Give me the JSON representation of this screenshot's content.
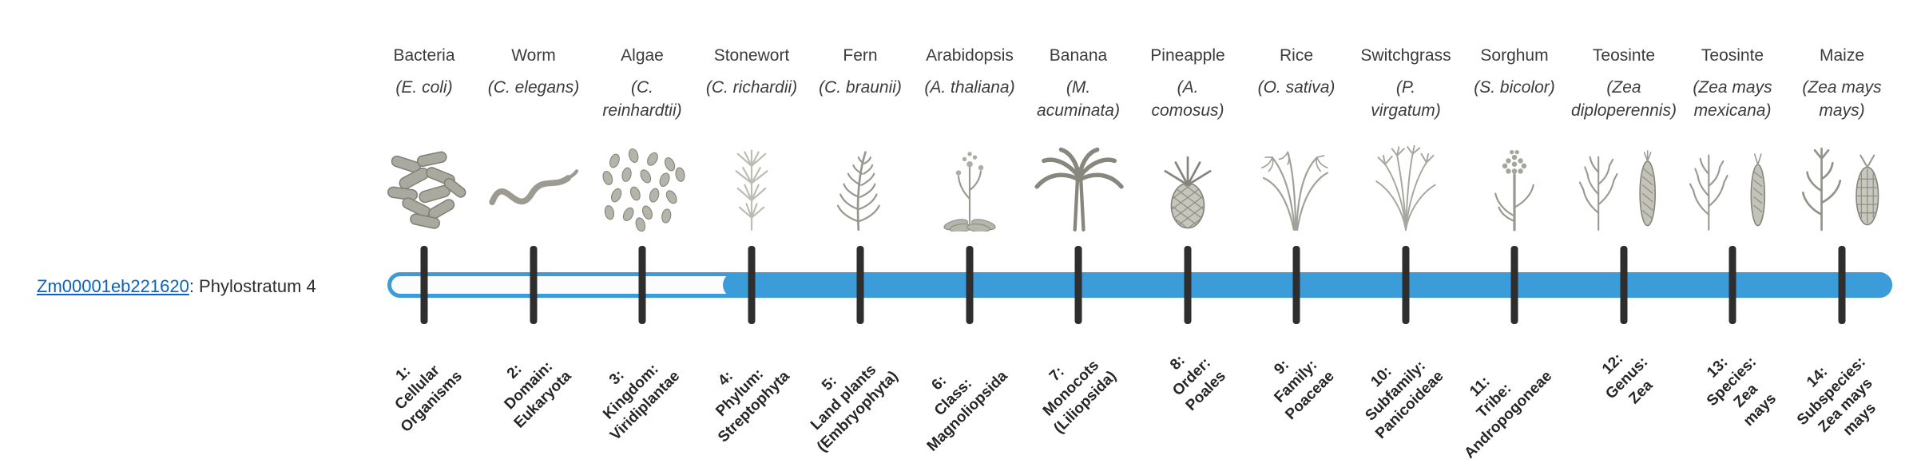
{
  "gene": {
    "id": "Zm00001eb221620",
    "suffix": ": Phylostratum 4"
  },
  "colors": {
    "bar_blue": "#3B9CD9",
    "tick": "#2E2E2E",
    "link": "#0A62C3",
    "text": "#3A3A3A"
  },
  "bar": {
    "filled_from_stratum": 4,
    "total_strata": 14
  },
  "columns": [
    {
      "common": "Bacteria",
      "scientific": "(E. coli)",
      "icon": "bacteria-icon",
      "stratum_label": "1:\nCellular\nOrganisms"
    },
    {
      "common": "Worm",
      "scientific": "(C. elegans)",
      "icon": "worm-icon",
      "stratum_label": "2:\nDomain:\nEukaryota"
    },
    {
      "common": "Algae",
      "scientific": "(C.\nreinhardtii)",
      "icon": "algae-icon",
      "stratum_label": "3:\nKingdom:\nViridiplantae"
    },
    {
      "common": "Stonewort",
      "scientific": "(C. richardii)",
      "icon": "stonewort-icon",
      "stratum_label": "4:\nPhylum:\nStreptophyta"
    },
    {
      "common": "Fern",
      "scientific": "(C. braunii)",
      "icon": "fern-icon",
      "stratum_label": "5:\nLand plants\n(Embryophyta)"
    },
    {
      "common": "Arabidopsis",
      "scientific": "(A. thaliana)",
      "icon": "arabidopsis-icon",
      "stratum_label": "6:\nClass:\nMagnoliopsida"
    },
    {
      "common": "Banana",
      "scientific": "(M.\nacuminata)",
      "icon": "banana-icon",
      "stratum_label": "7:\nMonocots\n(Liliopsida)"
    },
    {
      "common": "Pineapple",
      "scientific": "(A.\ncomosus)",
      "icon": "pineapple-icon",
      "stratum_label": "8:\nOrder:\nPoales"
    },
    {
      "common": "Rice",
      "scientific": "(O. sativa)",
      "icon": "rice-icon",
      "stratum_label": "9:\nFamily:\nPoaceae"
    },
    {
      "common": "Switchgrass",
      "scientific": "(P.\nvirgatum)",
      "icon": "switchgrass-icon",
      "stratum_label": "10:\nSubfamily:\nPanicoideae"
    },
    {
      "common": "Sorghum",
      "scientific": "(S. bicolor)",
      "icon": "sorghum-icon",
      "stratum_label": "11:\nTribe:\nAndropogoneae"
    },
    {
      "common": "Teosinte",
      "scientific": "(Zea\ndiploperennis)",
      "icon": "teosinte-diploperennis-icon",
      "stratum_label": "12:\nGenus:\nZea"
    },
    {
      "common": "Teosinte",
      "scientific": "(Zea mays\nmexicana)",
      "icon": "teosinte-mexicana-icon",
      "stratum_label": "13:\nSpecies:\nZea\nmays"
    },
    {
      "common": "Maize",
      "scientific": "(Zea mays\nmays)",
      "icon": "maize-icon",
      "stratum_label": "14:\nSubspecies:\nZea mays\nmays"
    }
  ]
}
